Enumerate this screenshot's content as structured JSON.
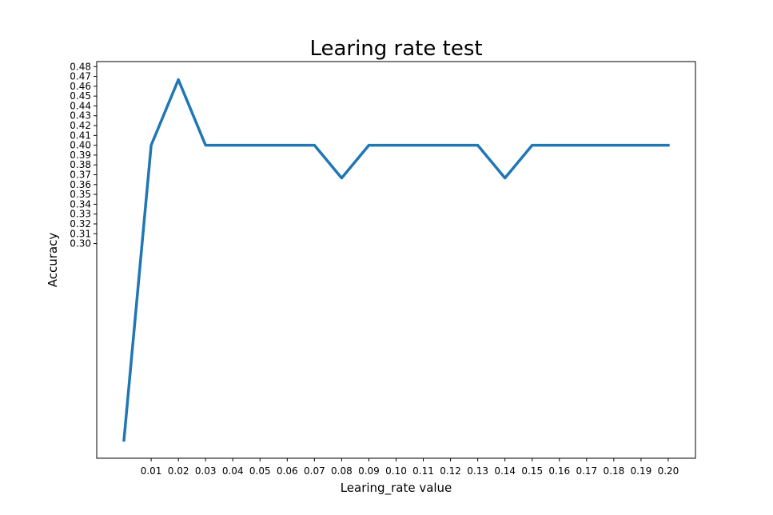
{
  "chart_data": {
    "type": "line",
    "title": "Learing rate test",
    "xlabel": "Learing_rate value",
    "ylabel": "Accuracy",
    "grid": false,
    "legend": "none",
    "colors": {
      "line": "#1f77b4",
      "axes": "#000000",
      "background": "#ffffff"
    },
    "series": [
      {
        "x": [
          0.0,
          0.01,
          0.02,
          0.03,
          0.04,
          0.05,
          0.06,
          0.07,
          0.08,
          0.09,
          0.1,
          0.11,
          0.12,
          0.13,
          0.14,
          0.15,
          0.16,
          0.17,
          0.18,
          0.19,
          0.2
        ],
        "y": [
          0.1,
          0.4,
          0.4667,
          0.4,
          0.4,
          0.4,
          0.4,
          0.4,
          0.3667,
          0.4,
          0.4,
          0.4,
          0.4,
          0.4,
          0.3667,
          0.4,
          0.4,
          0.4,
          0.4,
          0.4,
          0.4
        ]
      }
    ],
    "xlim": [
      -0.01,
      0.21
    ],
    "ylim": [
      0.0817,
      0.4851
    ],
    "xticks": [
      0.01,
      0.02,
      0.03,
      0.04,
      0.05,
      0.06,
      0.07,
      0.08,
      0.09,
      0.1,
      0.11,
      0.12,
      0.13,
      0.14,
      0.15,
      0.16,
      0.17,
      0.18,
      0.19,
      0.2
    ],
    "xtick_labels": [
      "0.01",
      "0.02",
      "0.03",
      "0.04",
      "0.05",
      "0.06",
      "0.07",
      "0.08",
      "0.09",
      "0.10",
      "0.11",
      "0.12",
      "0.13",
      "0.14",
      "0.15",
      "0.16",
      "0.17",
      "0.18",
      "0.19",
      "0.20"
    ],
    "yticks": [
      0.3,
      0.31,
      0.32,
      0.33,
      0.34,
      0.35,
      0.36,
      0.37,
      0.38,
      0.39,
      0.4,
      0.41,
      0.42,
      0.43,
      0.44,
      0.45,
      0.46,
      0.47,
      0.48
    ],
    "ytick_labels": [
      "0.30",
      "0.31",
      "0.32",
      "0.33",
      "0.34",
      "0.35",
      "0.36",
      "0.37",
      "0.38",
      "0.39",
      "0.40",
      "0.41",
      "0.42",
      "0.43",
      "0.44",
      "0.45",
      "0.46",
      "0.47",
      "0.48"
    ]
  }
}
